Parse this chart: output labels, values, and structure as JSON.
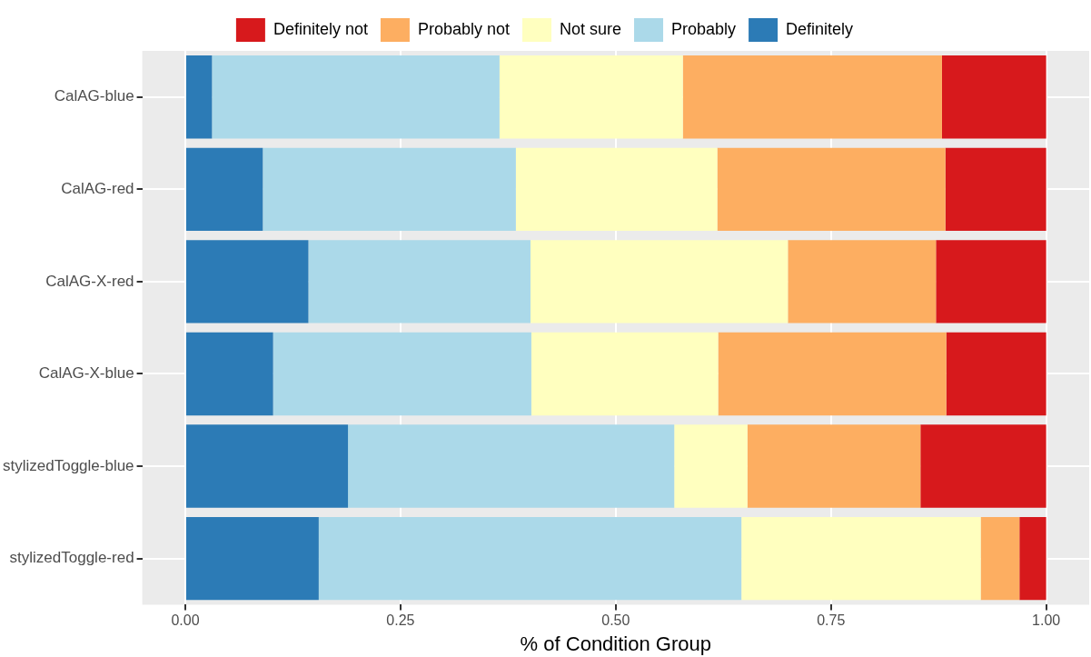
{
  "chart_data": {
    "type": "bar",
    "orientation": "horizontal",
    "stacked": true,
    "xlabel": "% of Condition Group",
    "categories": [
      "CalAG-blue",
      "CalAG-red",
      "CalAG-X-red",
      "CalAG-X-blue",
      "stylizedToggle-blue",
      "stylizedToggle-red"
    ],
    "series": [
      {
        "name": "Definitely",
        "color": "#2c7bb6",
        "values": [
          0.031,
          0.09,
          0.143,
          0.102,
          0.189,
          0.155
        ]
      },
      {
        "name": "Probably",
        "color": "#abd9e9",
        "values": [
          0.334,
          0.294,
          0.258,
          0.3,
          0.379,
          0.491
        ]
      },
      {
        "name": "Not sure",
        "color": "#ffffbf",
        "values": [
          0.213,
          0.234,
          0.299,
          0.217,
          0.085,
          0.278
        ]
      },
      {
        "name": "Probably not",
        "color": "#fdae61",
        "values": [
          0.301,
          0.265,
          0.172,
          0.265,
          0.201,
          0.045
        ]
      },
      {
        "name": "Definitely not",
        "color": "#d7191c",
        "values": [
          0.121,
          0.117,
          0.128,
          0.116,
          0.146,
          0.031
        ]
      }
    ],
    "xlim": [
      -0.05,
      1.05
    ],
    "xticks": [
      {
        "value": 0,
        "label": "0.00"
      },
      {
        "value": 0.25,
        "label": "0.25"
      },
      {
        "value": 0.5,
        "label": "0.50"
      },
      {
        "value": 0.75,
        "label": "0.75"
      },
      {
        "value": 1,
        "label": "1.00"
      }
    ],
    "grid": true,
    "legend": "top"
  }
}
